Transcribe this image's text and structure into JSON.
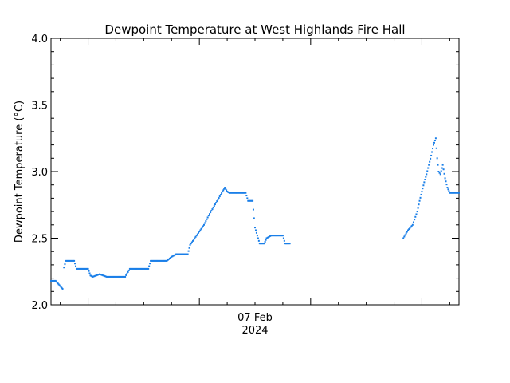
{
  "chart_data": {
    "type": "scatter",
    "title": "Dewpoint Temperature at West Highlands Fire Hall",
    "ylabel": "Dewpoint Temperature (°C)",
    "xlabel": "",
    "x_tick_label": "07 Feb",
    "x_tick_sublabel": "2024",
    "x_range_hours": [
      -56,
      32
    ],
    "x_tick_hour": 0,
    "ylim": [
      2.0,
      4.0
    ],
    "y_ticks": [
      "2.0",
      "2.5",
      "3.0",
      "3.5",
      "4.0"
    ],
    "grid": false,
    "marker_color": "#1a7fe8",
    "series": [
      {
        "segments": [
          [
            [
              -56,
              2.18
            ],
            [
              -55,
              2.18
            ],
            [
              -54.5,
              2.16
            ],
            [
              -54,
              2.14
            ],
            [
              -53.5,
              2.12
            ],
            [
              -53.2,
              2.28
            ],
            [
              -52.8,
              2.33
            ],
            [
              -51,
              2.33
            ],
            [
              -50.5,
              2.27
            ],
            [
              -48,
              2.27
            ],
            [
              -47.5,
              2.22
            ],
            [
              -47,
              2.21
            ],
            [
              -45.5,
              2.23
            ],
            [
              -44,
              2.21
            ],
            [
              -40,
              2.21
            ],
            [
              -39,
              2.27
            ],
            [
              -35,
              2.27
            ],
            [
              -34.5,
              2.33
            ],
            [
              -31,
              2.33
            ],
            [
              -30,
              2.36
            ],
            [
              -29,
              2.38
            ],
            [
              -26.5,
              2.38
            ],
            [
              -26,
              2.45
            ],
            [
              -25,
              2.5
            ],
            [
              -24,
              2.55
            ],
            [
              -23,
              2.6
            ],
            [
              -22,
              2.67
            ],
            [
              -21,
              2.73
            ],
            [
              -20,
              2.79
            ],
            [
              -19,
              2.85
            ],
            [
              -18.5,
              2.88
            ],
            [
              -18,
              2.85
            ],
            [
              -17.5,
              2.84
            ],
            [
              -14,
              2.84
            ],
            [
              -13.5,
              2.78
            ],
            [
              -12.5,
              2.78
            ],
            [
              -12.2,
              2.65
            ],
            [
              -12,
              2.58
            ],
            [
              -11.5,
              2.52
            ],
            [
              -11,
              2.46
            ],
            [
              -10,
              2.46
            ],
            [
              -9.5,
              2.5
            ],
            [
              -8.5,
              2.52
            ],
            [
              -6,
              2.52
            ],
            [
              -5.5,
              2.46
            ],
            [
              -4.5,
              2.46
            ]
          ],
          [
            [
              20,
              2.5
            ],
            [
              21,
              2.56
            ],
            [
              22,
              2.6
            ],
            [
              23,
              2.7
            ],
            [
              23.5,
              2.78
            ],
            [
              24,
              2.85
            ],
            [
              24.5,
              2.92
            ],
            [
              25,
              2.98
            ],
            [
              25.5,
              3.05
            ],
            [
              26,
              3.12
            ],
            [
              26.5,
              3.2
            ],
            [
              27,
              3.25
            ],
            [
              27.3,
              3.1
            ],
            [
              27.6,
              3.0
            ],
            [
              28,
              2.98
            ],
            [
              28.5,
              3.05
            ],
            [
              29,
              2.95
            ],
            [
              29.5,
              2.88
            ],
            [
              30,
              2.84
            ],
            [
              32,
              2.84
            ]
          ]
        ]
      }
    ]
  }
}
